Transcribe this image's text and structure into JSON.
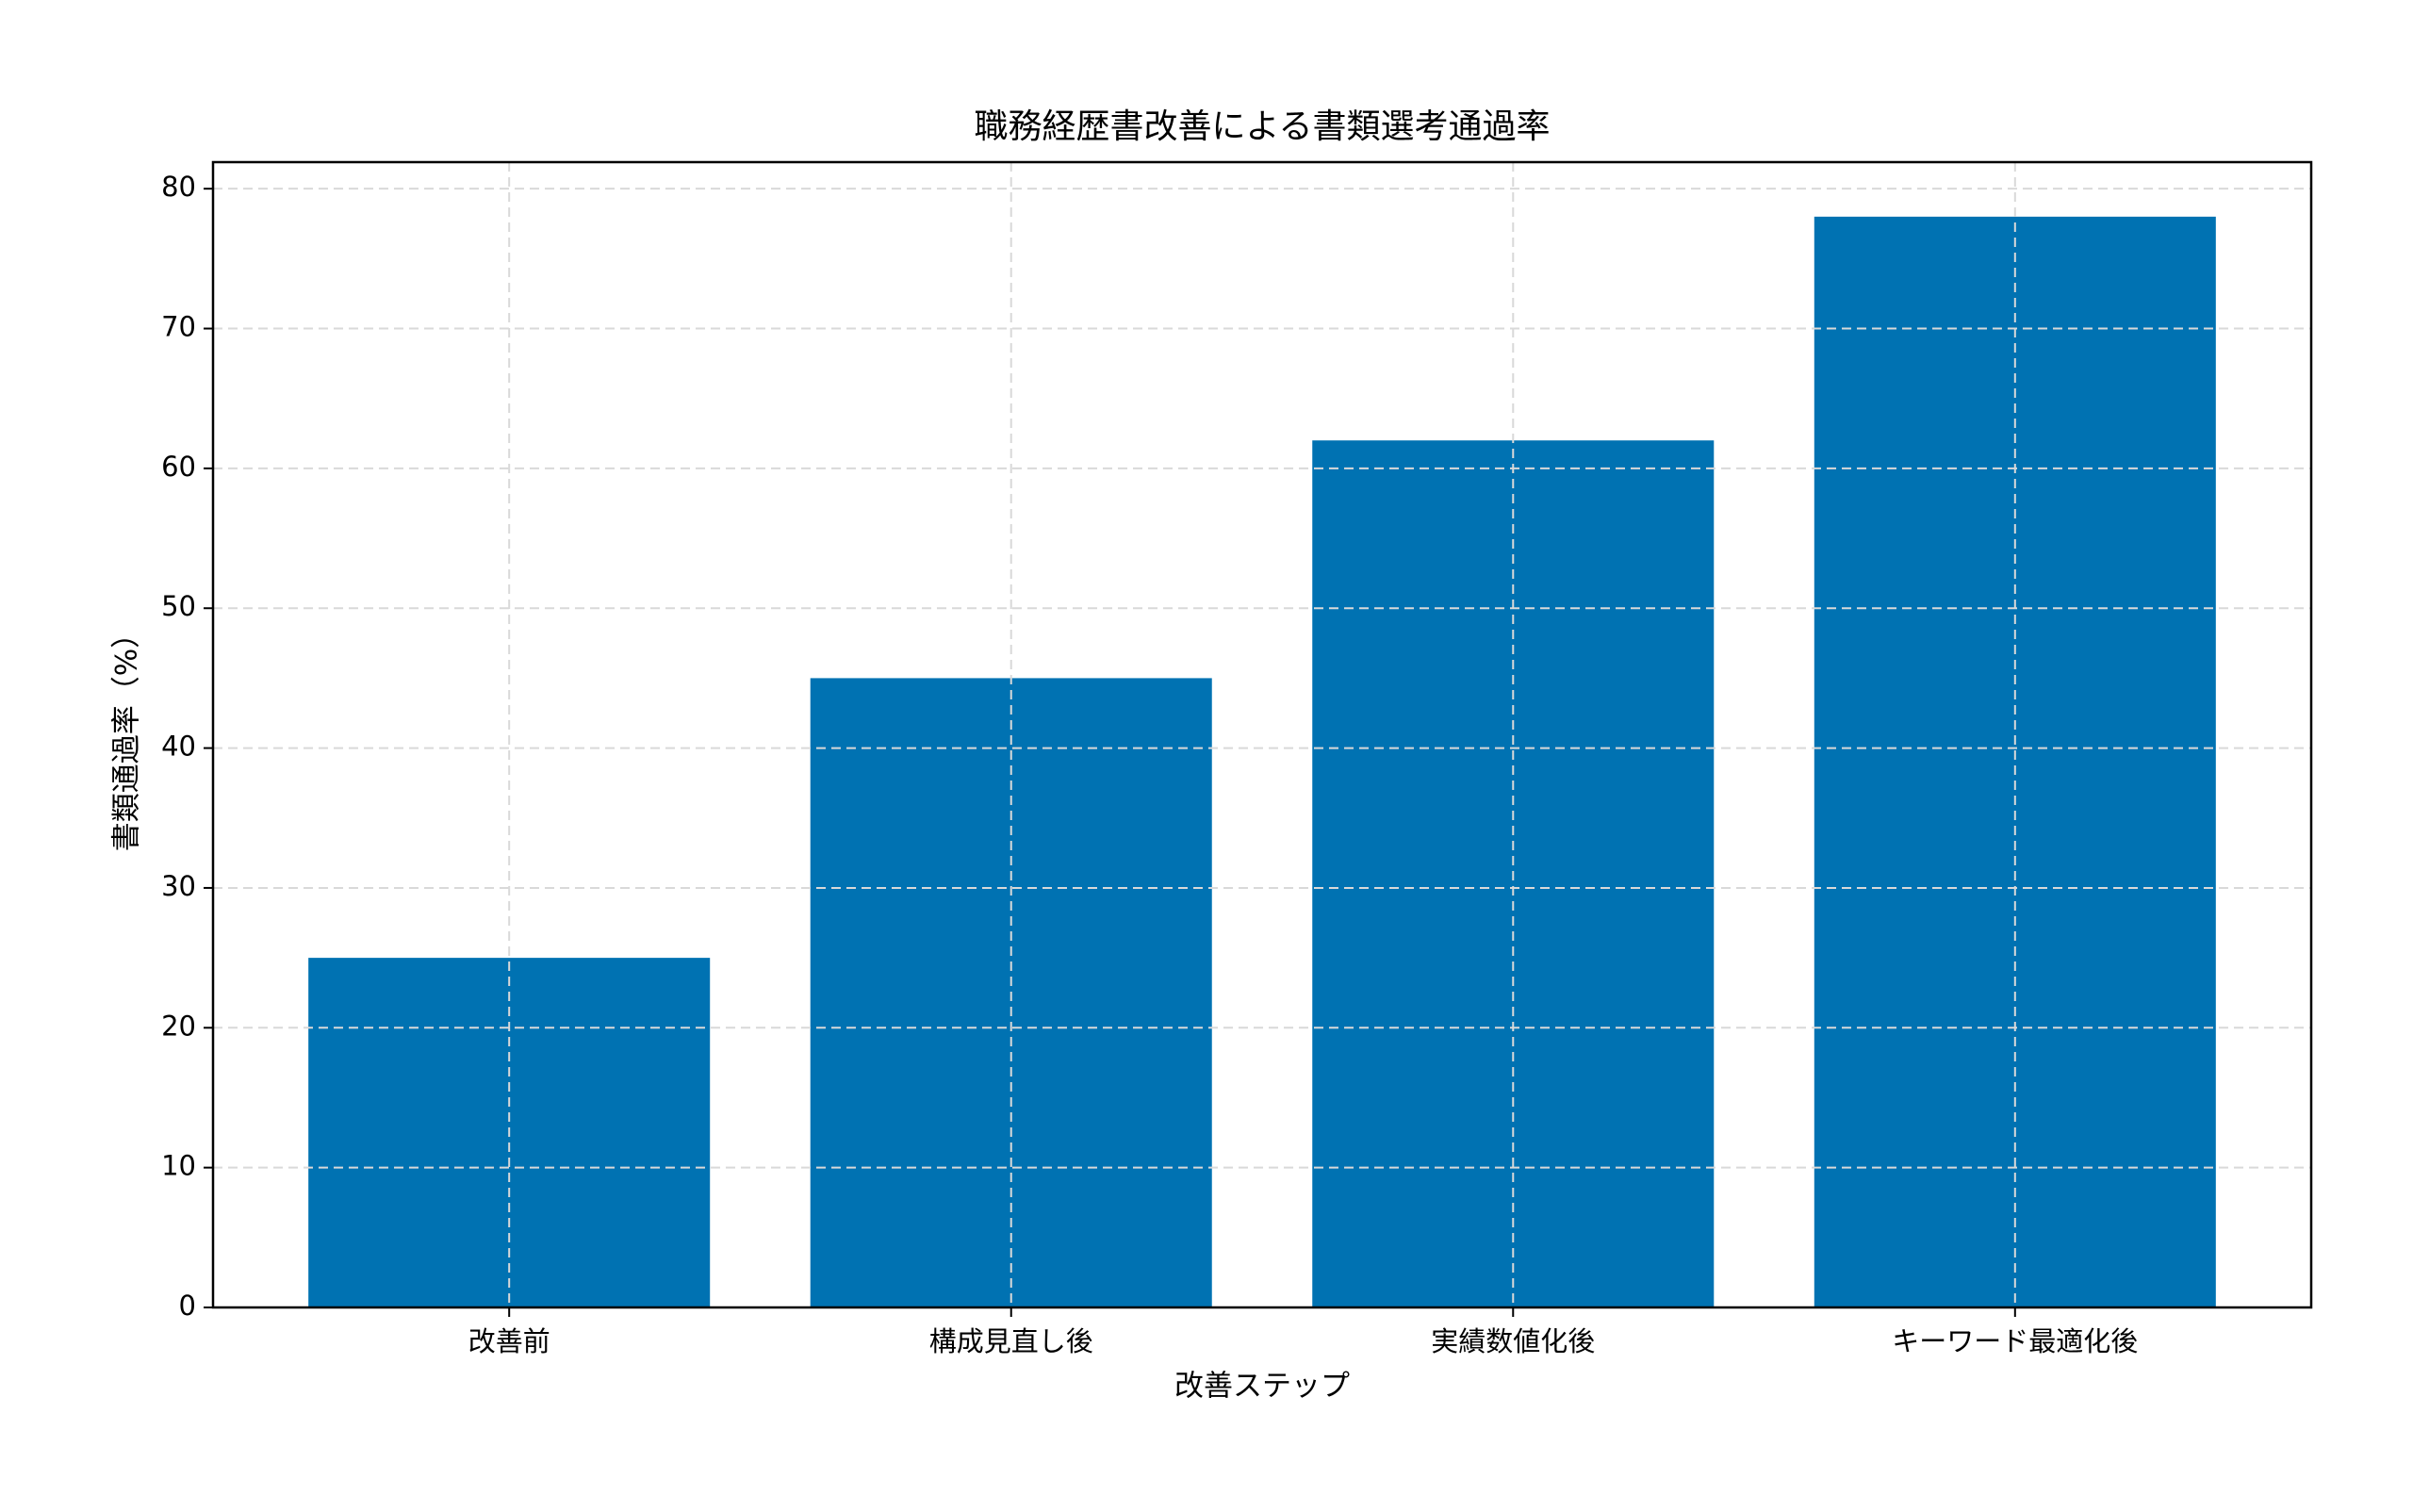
{
  "chart_data": {
    "type": "bar",
    "title": "職務経歴書改善による書類選考通過率",
    "x_label": "改善ステップ",
    "y_label": "書類通過率（%）",
    "categories": [
      "改善前",
      "構成見直し後",
      "実績数値化後",
      "キーワード最適化後"
    ],
    "values": [
      25,
      45,
      62,
      78
    ],
    "color": "#0072b2",
    "ylim": [
      0,
      81.9
    ],
    "yticks": [
      0,
      10,
      20,
      30,
      40,
      50,
      60,
      70,
      80
    ],
    "grid": true
  }
}
